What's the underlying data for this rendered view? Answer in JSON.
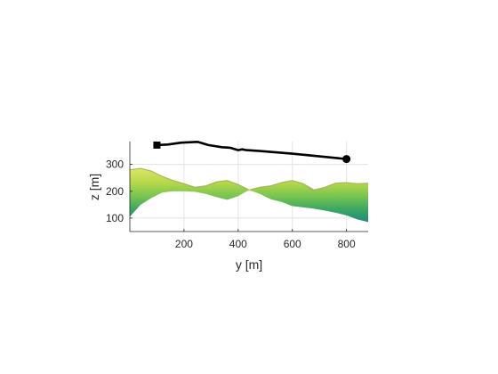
{
  "chart_data": {
    "type": "line",
    "xlabel": "y [m]",
    "ylabel": "z [m]",
    "xlim": [
      0,
      880
    ],
    "ylim": [
      50,
      385
    ],
    "x_ticks": [
      200,
      400,
      600,
      800
    ],
    "y_ticks": [
      100,
      200,
      300
    ],
    "grid": true,
    "series": [
      {
        "marker_start": "square",
        "marker_end": "circle",
        "color": "#000000",
        "x": [
          100,
          140,
          190,
          250,
          290,
          340,
          370,
          400,
          415,
          430,
          480,
          600,
          700,
          800
        ],
        "y": [
          372,
          374,
          381,
          384,
          372,
          364,
          362,
          353,
          356,
          353,
          350,
          340,
          330,
          320
        ]
      }
    ],
    "terrain": {
      "colormap": [
        "#1e8c76",
        "#3ea862",
        "#7cc64f",
        "#b9d94a",
        "#dde567"
      ],
      "y": [
        0,
        40,
        80,
        120,
        160,
        200,
        240,
        280,
        320,
        360,
        400,
        440,
        480,
        520,
        560,
        600,
        640,
        680,
        720,
        760,
        800,
        840,
        880
      ],
      "top": [
        280,
        285,
        275,
        255,
        240,
        228,
        215,
        220,
        235,
        240,
        225,
        205,
        215,
        220,
        232,
        240,
        228,
        205,
        215,
        230,
        232,
        228,
        230
      ],
      "bottom": [
        105,
        150,
        175,
        195,
        200,
        200,
        198,
        190,
        178,
        168,
        182,
        205,
        190,
        170,
        160,
        145,
        140,
        135,
        128,
        120,
        110,
        95,
        85
      ]
    }
  }
}
